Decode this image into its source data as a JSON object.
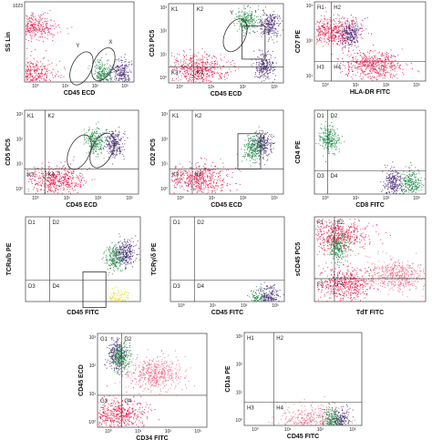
{
  "figure": {
    "panels": [
      {
        "id": "p1",
        "xlabel": "CD45 ECD",
        "ylabel": "SS Lin",
        "yticks": [
          "1023"
        ],
        "xticks": [
          "10⁰",
          "10¹",
          "10²",
          "10³"
        ],
        "quadrants": [],
        "regions": [
          "Y",
          "X"
        ]
      },
      {
        "id": "p2",
        "xlabel": "CD45 ECD",
        "ylabel": "CD3 PC5",
        "yticks": [
          "10³",
          "10²",
          "10¹",
          "10⁰"
        ],
        "xticks": [
          "10⁰",
          "10¹",
          "10²",
          "10³"
        ],
        "quadrants": [
          "K1",
          "K2",
          "K3",
          "K4"
        ],
        "regions": [
          "Y",
          "X"
        ]
      },
      {
        "id": "p3",
        "xlabel": "HLA-DR FITC",
        "ylabel": "CD7 PE",
        "yticks": [
          "10³",
          "10²",
          "10¹"
        ],
        "xticks": [
          "10⁰",
          "10¹",
          "10²",
          "10³"
        ],
        "quadrants": [
          "H1",
          "H2",
          "H3",
          "H4"
        ],
        "regions": []
      },
      {
        "id": "p4",
        "xlabel": "CD45 ECD",
        "ylabel": "CD5 PC5",
        "yticks": [
          "10³",
          "10²",
          "10¹",
          "10⁰"
        ],
        "xticks": [
          "10⁰",
          "10¹",
          "10²",
          "10³"
        ],
        "quadrants": [
          "K1",
          "K2",
          "K3",
          "K4"
        ],
        "regions": []
      },
      {
        "id": "p5",
        "xlabel": "CD45 ECD",
        "ylabel": "CD2 PC5",
        "yticks": [
          "10³",
          "10²",
          "10¹",
          "10⁰"
        ],
        "xticks": [
          "10⁰",
          "10¹",
          "10²",
          "10³"
        ],
        "quadrants": [
          "K1",
          "K2",
          "K3",
          "K4"
        ],
        "regions": []
      },
      {
        "id": "p6",
        "xlabel": "CD8 FITC",
        "ylabel": "CD4 PE",
        "yticks": [],
        "xticks": [
          "10⁰",
          "10¹",
          "10²",
          "10³"
        ],
        "quadrants": [
          "D1",
          "D2",
          "D3",
          "D4"
        ],
        "regions": []
      },
      {
        "id": "p7",
        "xlabel": "CD45 FITC",
        "ylabel": "TCRa/b PE",
        "yticks": [],
        "xticks": [],
        "quadrants": [
          "D1",
          "D2",
          "D3",
          "D4"
        ],
        "regions": []
      },
      {
        "id": "p8",
        "xlabel": "CD45 FITC",
        "ylabel": "TCRγ/δ PE",
        "yticks": [],
        "xticks": [
          "10⁰",
          "10¹",
          "10²",
          "10³"
        ],
        "quadrants": [
          "D1",
          "D2",
          "D3",
          "D4"
        ],
        "regions": []
      },
      {
        "id": "p9",
        "xlabel": "TdT FITC",
        "ylabel": "sCD45 PC5",
        "yticks": [],
        "xticks": [],
        "quadrants": [
          "F1",
          "F2",
          "F3",
          "F4"
        ],
        "regions": []
      },
      {
        "id": "p10",
        "xlabel": "CD34 FITC",
        "ylabel": "CD45 ECD",
        "yticks": [
          "10³",
          "10²",
          "10¹",
          "10⁰"
        ],
        "xticks": [
          "10⁰",
          "10¹",
          "10²",
          "10³"
        ],
        "quadrants": [
          "G1",
          "G2",
          "G3",
          "G4"
        ],
        "regions": []
      },
      {
        "id": "p11",
        "xlabel": "CD45 FITC",
        "ylabel": "CD1a PE",
        "yticks": [
          "10³",
          "10²",
          "10¹",
          "10⁰"
        ],
        "xticks": [
          "10⁰",
          "10¹",
          "10²",
          "10³"
        ],
        "quadrants": [
          "H1",
          "H2",
          "H3",
          "H4"
        ],
        "regions": []
      }
    ]
  },
  "colors": {
    "red": "#e8174a",
    "pink": "#f06a86",
    "purple": "#4b2a78",
    "green": "#1f8a45",
    "yellow": "#f2e12a",
    "axis": "#555555",
    "quad_line": "#333333"
  },
  "chart_data": [
    {
      "type": "scatter",
      "panel": "p1",
      "xlabel": "CD45 ECD",
      "ylabel": "SS Lin",
      "xscale": "log",
      "ylim": [
        0,
        1023
      ],
      "populations": [
        {
          "color": "red",
          "x_center": 0.3,
          "y_center": 110,
          "note": ""
        },
        {
          "color": "red",
          "x_center": 0.35,
          "y_center": 700
        },
        {
          "color": "purple",
          "x_center": 700,
          "y_center": 120
        },
        {
          "color": "green",
          "x_center": 160,
          "y_center": 100
        }
      ],
      "gates": [
        {
          "label": "Y",
          "shape": "ellipse"
        },
        {
          "label": "X",
          "shape": "ellipse"
        }
      ]
    },
    {
      "type": "scatter",
      "panel": "p2",
      "xlabel": "CD45 ECD",
      "ylabel": "CD3 PC5",
      "xscale": "log",
      "yscale": "log",
      "populations": [
        {
          "color": "red",
          "x_center": 3,
          "y_center": 1.5
        },
        {
          "color": "purple",
          "x_center": 450,
          "y_center": 2
        },
        {
          "color": "green",
          "x_center": 120,
          "y_center": 300
        },
        {
          "color": "purple",
          "x_center": 700,
          "y_center": 200
        }
      ],
      "gates": [
        {
          "label": "Y",
          "shape": "ellipse"
        },
        {
          "label": "X",
          "shape": "rectangle"
        }
      ]
    },
    {
      "type": "scatter",
      "panel": "p3",
      "xlabel": "HLA-DR FITC",
      "ylabel": "CD7 PE",
      "xscale": "log",
      "yscale": "log",
      "populations": [
        {
          "color": "red",
          "x_center": 1,
          "y_center": 80
        },
        {
          "color": "purple",
          "x_center": 5,
          "y_center": 60
        },
        {
          "color": "red",
          "x_center": 30,
          "y_center": 2
        }
      ]
    },
    {
      "type": "scatter",
      "panel": "p4",
      "xlabel": "CD45 ECD",
      "ylabel": "CD5 PC5",
      "xscale": "log",
      "yscale": "log",
      "populations": [
        {
          "color": "red",
          "x_center": 3,
          "y_center": 1.5
        },
        {
          "color": "green",
          "x_center": 70,
          "y_center": 80
        },
        {
          "color": "purple",
          "x_center": 300,
          "y_center": 60
        }
      ],
      "gates": [
        {
          "shape": "ellipse"
        },
        {
          "shape": "ellipse"
        }
      ]
    },
    {
      "type": "scatter",
      "panel": "p5",
      "xlabel": "CD45 ECD",
      "ylabel": "CD2 PC5",
      "xscale": "log",
      "yscale": "log",
      "populations": [
        {
          "color": "red",
          "x_center": 3,
          "y_center": 1.5
        },
        {
          "color": "purple",
          "x_center": 400,
          "y_center": 60
        },
        {
          "color": "green",
          "x_center": 200,
          "y_center": 40
        }
      ],
      "gates": [
        {
          "shape": "rectangle"
        }
      ]
    },
    {
      "type": "scatter",
      "panel": "p6",
      "xlabel": "CD8 FITC",
      "ylabel": "CD4 PE",
      "xscale": "log",
      "yscale": "log",
      "populations": [
        {
          "color": "green",
          "x_center": 1,
          "y_center": 100
        },
        {
          "color": "purple",
          "x_center": 150,
          "y_center": 1
        },
        {
          "color": "green",
          "x_center": 600,
          "y_center": 1
        }
      ]
    },
    {
      "type": "scatter",
      "panel": "p7",
      "xlabel": "CD45 FITC",
      "ylabel": "TCRa/b PE",
      "xscale": "log",
      "yscale": "log",
      "populations": [
        {
          "color": "green",
          "x_center": 300,
          "y_center": 30
        },
        {
          "color": "purple",
          "x_center": 600,
          "y_center": 50
        },
        {
          "color": "yellow",
          "x_center": 350,
          "y_center": 0.3
        }
      ],
      "gates": [
        {
          "shape": "rectangle"
        }
      ]
    },
    {
      "type": "scatter",
      "panel": "p8",
      "xlabel": "CD45 FITC",
      "ylabel": "TCRγ/δ PE",
      "xscale": "log",
      "yscale": "log",
      "populations": [
        {
          "color": "green",
          "x_center": 300,
          "y_center": 0.3
        },
        {
          "color": "purple",
          "x_center": 600,
          "y_center": 0.4
        }
      ]
    },
    {
      "type": "scatter",
      "panel": "p9",
      "xlabel": "TdT FITC",
      "ylabel": "sCD45 PC5",
      "xscale": "log",
      "yscale": "log",
      "populations": [
        {
          "color": "red",
          "x_center": 2,
          "y_center": 300
        },
        {
          "color": "green",
          "x_center": 2,
          "y_center": 100
        },
        {
          "color": "red",
          "x_center": 3,
          "y_center": 2
        },
        {
          "color": "pink",
          "x_center": 200,
          "y_center": 5
        }
      ]
    },
    {
      "type": "scatter",
      "panel": "p10",
      "xlabel": "CD34 FITC",
      "ylabel": "CD45 ECD",
      "xscale": "log",
      "yscale": "log",
      "populations": [
        {
          "color": "purple",
          "x_center": 1.5,
          "y_center": 300
        },
        {
          "color": "green",
          "x_center": 2,
          "y_center": 200
        },
        {
          "color": "pink",
          "x_center": 30,
          "y_center": 50
        },
        {
          "color": "red",
          "x_center": 1.5,
          "y_center": 1
        }
      ]
    },
    {
      "type": "scatter",
      "panel": "p11",
      "xlabel": "CD45 FITC",
      "ylabel": "CD1a PE",
      "xscale": "log",
      "yscale": "log",
      "populations": [
        {
          "color": "pink",
          "x_center": 50,
          "y_center": 0.4
        },
        {
          "color": "purple",
          "x_center": 400,
          "y_center": 0.4
        },
        {
          "color": "green",
          "x_center": 200,
          "y_center": 0.4
        }
      ]
    }
  ]
}
